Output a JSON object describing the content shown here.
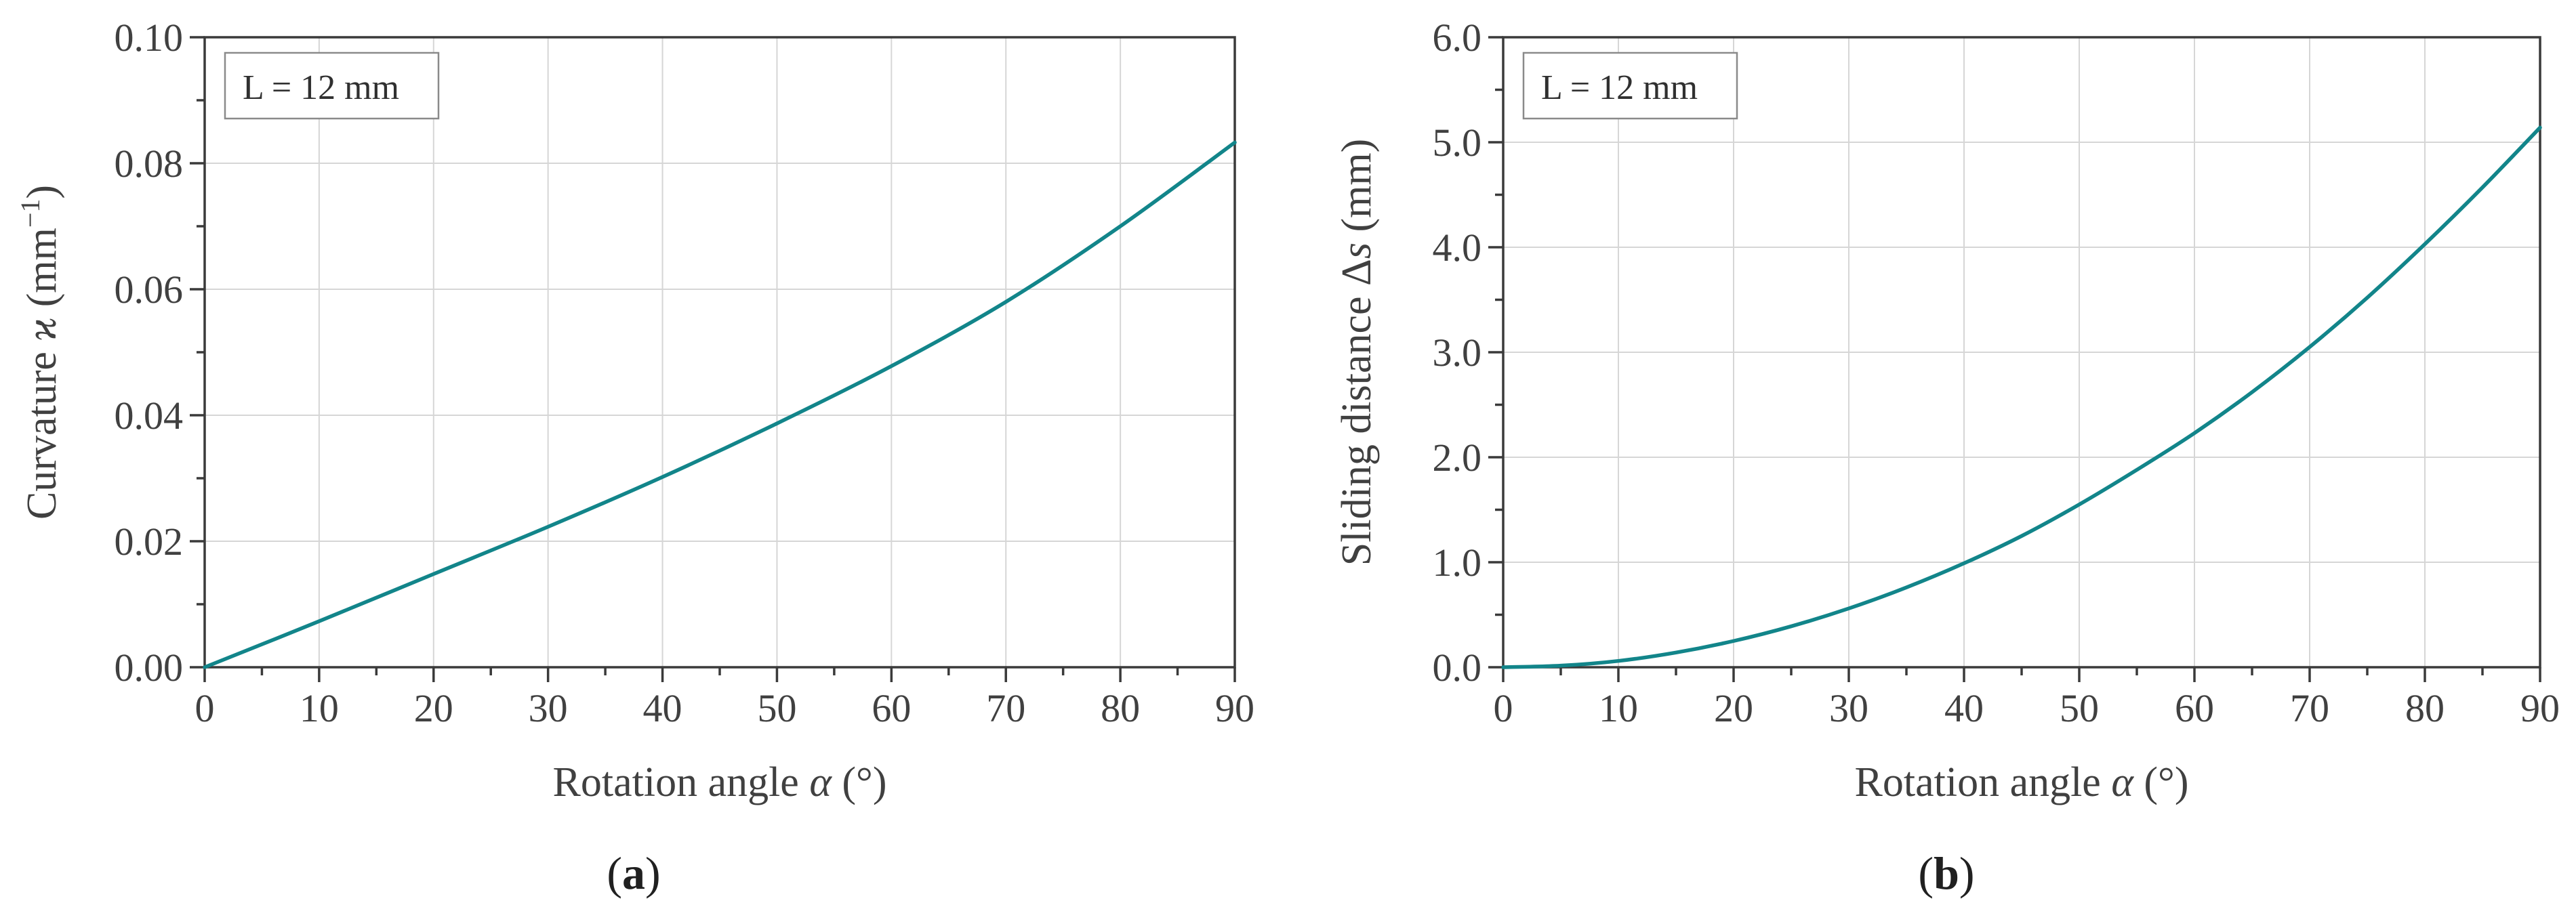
{
  "colors": {
    "series": "#12858a"
  },
  "chart_data": [
    {
      "type": "line",
      "panel_label": "a",
      "legend_text": "L = 12 mm",
      "legend_position": "top-left",
      "title": "",
      "xlabel_text": "Rotation angle ",
      "xlabel_symbol": "α",
      "xlabel_unit": " (°)",
      "ylabel_text": "Curvature ",
      "ylabel_symbol": "ϰ",
      "ylabel_unit": " (mm",
      "ylabel_sup": "−1",
      "ylabel_close": ")",
      "xlim": [
        0,
        90
      ],
      "ylim": [
        0,
        0.1
      ],
      "xticks": [
        0,
        10,
        20,
        30,
        40,
        50,
        60,
        70,
        80,
        90
      ],
      "xtick_labels": [
        "0",
        "10",
        "20",
        "30",
        "40",
        "50",
        "60",
        "70",
        "80",
        "90"
      ],
      "yticks": [
        0,
        0.02,
        0.04,
        0.06,
        0.08,
        0.1
      ],
      "ytick_labels": [
        "0.00",
        "0.02",
        "0.04",
        "0.06",
        "0.08",
        "0.10"
      ],
      "grid": true,
      "series": [
        {
          "name": "L = 12 mm",
          "x": [
            0,
            10,
            20,
            30,
            40,
            50,
            60,
            70,
            80,
            90
          ],
          "values": [
            0,
            0.0073,
            0.0148,
            0.0223,
            0.0302,
            0.0387,
            0.0478,
            0.058,
            0.07,
            0.0833
          ]
        }
      ]
    },
    {
      "type": "line",
      "panel_label": "b",
      "legend_text": "L = 12 mm",
      "legend_position": "top-left",
      "title": "",
      "xlabel_text": "Rotation angle ",
      "xlabel_symbol": "α",
      "xlabel_unit": " (°)",
      "ylabel_text": "Sliding distance Δ",
      "ylabel_symbol": "s",
      "ylabel_unit": " (mm)",
      "ylabel_sup": "",
      "ylabel_close": "",
      "xlim": [
        0,
        90
      ],
      "ylim": [
        0,
        6.0
      ],
      "xticks": [
        0,
        10,
        20,
        30,
        40,
        50,
        60,
        70,
        80,
        90
      ],
      "xtick_labels": [
        "0",
        "10",
        "20",
        "30",
        "40",
        "50",
        "60",
        "70",
        "80",
        "90"
      ],
      "yticks": [
        0,
        1,
        2,
        3,
        4,
        5,
        6
      ],
      "ytick_labels": [
        "0.0",
        "1.0",
        "2.0",
        "3.0",
        "4.0",
        "5.0",
        "6.0"
      ],
      "grid": true,
      "series": [
        {
          "name": "L = 12 mm",
          "x": [
            0,
            5,
            10,
            15,
            20,
            25,
            30,
            35,
            40,
            45,
            50,
            55,
            60,
            65,
            70,
            75,
            80,
            85,
            90
          ],
          "values": [
            0,
            0.015,
            0.06,
            0.14,
            0.25,
            0.39,
            0.56,
            0.76,
            0.99,
            1.25,
            1.55,
            1.88,
            2.23,
            2.62,
            3.05,
            3.52,
            4.03,
            4.57,
            5.14
          ]
        }
      ]
    }
  ]
}
